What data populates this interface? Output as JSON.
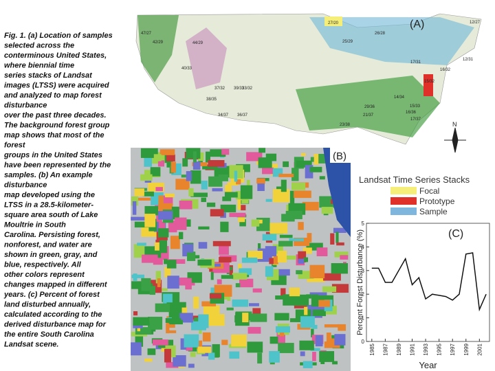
{
  "caption": [
    "Fig. 1. (a) Location of samples",
    "selected across the",
    "conterminous United States,",
    "where biennial time",
    "series stacks of Landsat",
    "images (LTSS) were acquired",
    "and analyzed to map forest",
    "disturbance",
    "over the past three decades.",
    "The background forest group",
    "map shows that most of the",
    "forest",
    "groups in the United States",
    "have been represented by the",
    "samples. (b) An example",
    "disturbance",
    "map developed using the",
    "LTSS in a 28.5-kilometer-",
    "square area south of Lake",
    "Moultrie in South",
    "Carolina. Persisting forest,",
    "nonforest, and water are",
    "shown in green, gray, and",
    "blue, respectively. All",
    "other colors represent",
    "changes mapped in different",
    "years. (c) Percent of forest",
    "land disturbed annually,",
    "calculated according to the",
    "derived disturbance map for",
    "the entire South Carolina",
    "Landsat scene."
  ],
  "map_a": {
    "label": "(A)",
    "north": "N",
    "scene_labels": [
      "47/27",
      "27/20",
      "12/27",
      "42/29",
      "44/29",
      "26/28",
      "25/29",
      "12/31",
      "17/31",
      "16/32",
      "15/32",
      "14/34",
      "15/33",
      "40/33",
      "37/32",
      "39/33",
      "33/32",
      "38/35",
      "29/36",
      "21/37",
      "36/37",
      "34/37",
      "23/38",
      "16/36",
      "17/37"
    ]
  },
  "map_b": {
    "label": "(B)"
  },
  "legend": {
    "title": "Landsat Time Series Stacks",
    "items": [
      {
        "name": "Focal",
        "color": "#f5ef7a"
      },
      {
        "name": "Prototype",
        "color": "#e0302a"
      },
      {
        "name": "Sample",
        "color": "#7fb6de"
      }
    ]
  },
  "chart_data": {
    "type": "line",
    "label": "(C)",
    "x_label": "Year",
    "y_label": "Percent Forest Disturbance (%)",
    "x": [
      1985,
      1986,
      1987,
      1988,
      1989,
      1990,
      1991,
      1992,
      1993,
      1994,
      1995,
      1996,
      1997,
      1998,
      1999,
      2000,
      2001,
      2002
    ],
    "series": [
      {
        "name": "Percent Forest Disturbance",
        "color": "#111111",
        "values": [
          3.1,
          3.1,
          2.5,
          2.5,
          3.0,
          3.5,
          2.4,
          2.7,
          1.8,
          2.0,
          1.95,
          1.9,
          1.75,
          2.0,
          3.7,
          3.75,
          1.35,
          2.0
        ]
      }
    ],
    "xlim": [
      1984.2,
      2002.5
    ],
    "ylim": [
      0,
      5
    ],
    "xticks": [
      1985,
      1987,
      1989,
      1991,
      1993,
      1995,
      1997,
      1999,
      2001
    ],
    "yticks": [
      0,
      1,
      2,
      3,
      4,
      5
    ]
  }
}
